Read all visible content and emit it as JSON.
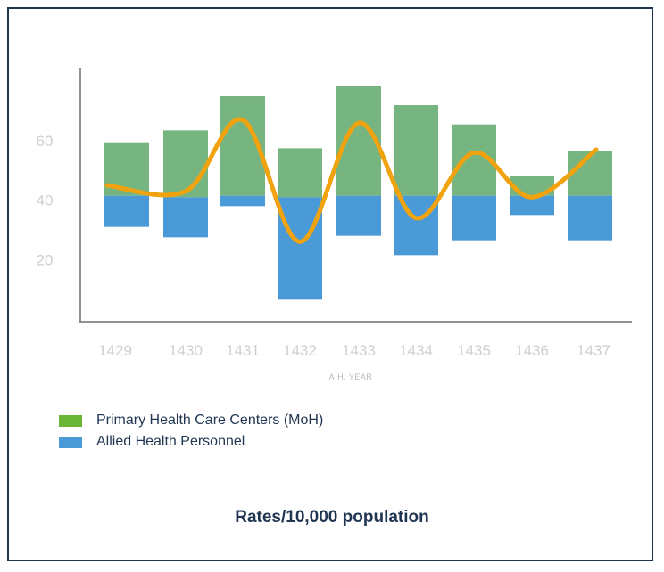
{
  "chart_data": {
    "type": "bar",
    "categories": [
      "1429",
      "1430",
      "1431",
      "1432",
      "1433",
      "1434",
      "1435",
      "1436",
      "1437"
    ],
    "series": [
      {
        "name": "Primary Health Care Centers (MoH)",
        "color": "#77b580",
        "legend_color": "#6ab534",
        "ranges": [
          [
            41.5,
            59.5
          ],
          [
            41,
            63.5
          ],
          [
            41.5,
            75
          ],
          [
            41,
            57.5
          ],
          [
            41.5,
            78.5
          ],
          [
            41.5,
            72
          ],
          [
            41.5,
            65.5
          ],
          [
            41.5,
            48
          ],
          [
            41.5,
            56.5
          ]
        ]
      },
      {
        "name": "Allied Health Personnel",
        "color": "#4a9ad8",
        "legend_color": "#4a9ad8",
        "ranges": [
          [
            31,
            41.5
          ],
          [
            27.5,
            41
          ],
          [
            38,
            41.5
          ],
          [
            6.5,
            41
          ],
          [
            28,
            41.5
          ],
          [
            21.5,
            41.5
          ],
          [
            26.5,
            41.5
          ],
          [
            35,
            41.5
          ],
          [
            26.5,
            41.5
          ]
        ]
      }
    ],
    "line": {
      "color": "#f0a20f",
      "values": [
        45,
        43,
        67,
        26,
        66,
        34,
        56,
        41,
        57
      ]
    },
    "yticks": [
      "20",
      "40",
      "60"
    ],
    "xlabel": "A.H. YEAR",
    "ylim": [
      0,
      85
    ],
    "grid": false,
    "legend_position": "bottom-left"
  },
  "legend": [
    {
      "label": "Primary Health Care Centers (MoH)",
      "color": "#6ab534"
    },
    {
      "label": "Allied Health Personnel",
      "color": "#4a9ad8"
    }
  ],
  "caption": "Rates/10,000 population"
}
